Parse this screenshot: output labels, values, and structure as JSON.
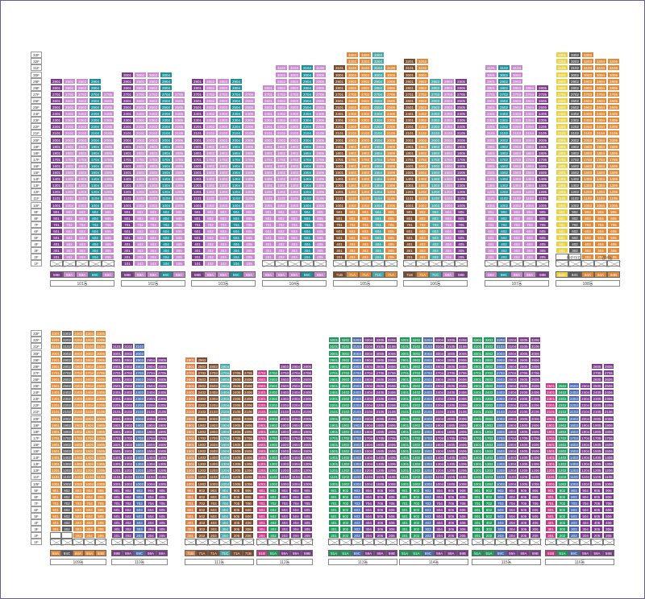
{
  "floor_labels": [
    "33F",
    "32F",
    "31F",
    "30F",
    "29F",
    "28F",
    "27F",
    "26F",
    "25F",
    "24F",
    "23F",
    "22F",
    "21F",
    "20F",
    "19F",
    "18F",
    "17F",
    "16F",
    "15F",
    "14F",
    "13F",
    "12F",
    "11F",
    "10F",
    "9F",
    "8F",
    "7F",
    "6F",
    "5F",
    "4F",
    "3F",
    "2F",
    "1F"
  ],
  "colors": {
    "59A": "#7b3a8c",
    "59B": "#7b3a8c",
    "59C": "#1f8f9a",
    "71A": "#d9824a",
    "71B": "#6b3f2a",
    "71C": "#4aa8a8",
    "84A": "#e08a3a",
    "84B": "#8e8e8e",
    "84C": "#5a4a8a",
    "51A": "#c63a8a",
    "51B": "#1f9a5a",
    "light": "#e8a9d8",
    "yellow": "#e8d24a",
    "brown": "#7b4a2a",
    "olive": "#c8a832",
    "blue": "#4a6ab0"
  },
  "rows": [
    {
      "buildings": [
        {
          "name": "101동",
          "units": 5,
          "top": 29,
          "types": [
            "59B",
            "59A",
            "59A",
            "59C",
            "59A"
          ],
          "colors": [
            "#7b3a8c",
            "#c98ad0",
            "#c98ad0",
            "#1f8f9a",
            "#c98ad0"
          ],
          "tops": [
            29,
            29,
            29,
            29,
            27
          ],
          "blank_bottom": 1
        },
        {
          "name": "102동",
          "units": 5,
          "top": 30,
          "types": [
            "59B",
            "59A",
            "59A",
            "59C",
            "59A"
          ],
          "colors": [
            "#7b3a8c",
            "#c98ad0",
            "#c98ad0",
            "#1f8f9a",
            "#c98ad0"
          ],
          "tops": [
            30,
            30,
            30,
            30,
            27
          ],
          "blank_bottom": 0
        },
        {
          "name": "103동",
          "units": 5,
          "top": 29,
          "types": [
            "59B",
            "59A",
            "59A",
            "59C",
            "59A"
          ],
          "colors": [
            "#7b3a8c",
            "#c98ad0",
            "#c98ad0",
            "#1f8f9a",
            "#c98ad0"
          ],
          "tops": [
            29,
            29,
            29,
            29,
            27
          ],
          "blank_bottom": 0
        },
        {
          "name": "104동",
          "units": 5,
          "top": 31,
          "types": [
            "59A",
            "59A",
            "59A",
            "59C",
            "59A"
          ],
          "colors": [
            "#c98ad0",
            "#c98ad0",
            "#c98ad0",
            "#1f8f9a",
            "#c98ad0"
          ],
          "tops": [
            28,
            31,
            31,
            31,
            31
          ],
          "blank_bottom": 1
        },
        {
          "name": "105동",
          "units": 5,
          "top": 33,
          "types": [
            "71B",
            "71A",
            "71A",
            "71C",
            "71A"
          ],
          "colors": [
            "#7b4a2a",
            "#e08a3a",
            "#e08a3a",
            "#4aa8a8",
            "#e08a3a"
          ],
          "tops": [
            31,
            33,
            33,
            33,
            31
          ],
          "blank_bottom": 1
        },
        {
          "name": "106동",
          "units": 5,
          "top": 32,
          "types": [
            "71B",
            "71A",
            "71C",
            "59A",
            "59B"
          ],
          "colors": [
            "#7b4a2a",
            "#e08a3a",
            "#4aa8a8",
            "#c98ad0",
            "#7b3a8c"
          ],
          "tops": [
            32,
            32,
            29,
            29,
            29
          ],
          "blank_bottom": 1
        },
        {
          "name": "107동",
          "units": 5,
          "top": 31,
          "types": [
            "59A",
            "59C",
            "59A",
            "59A",
            "59B"
          ],
          "colors": [
            "#c98ad0",
            "#1f8f9a",
            "#c98ad0",
            "#c98ad0",
            "#7b3a8c"
          ],
          "tops": [
            31,
            31,
            31,
            28,
            28
          ],
          "blank_bottom": 1
        },
        {
          "name": "108동",
          "units": 5,
          "top": 33,
          "types": [
            "84A",
            "84C",
            "84A",
            "84A",
            "84B"
          ],
          "colors": [
            "#e8d24a",
            "#5a5a5a",
            "#e08a3a",
            "#e08a3a",
            "#e08a3a"
          ],
          "tops": [
            33,
            33,
            33,
            32,
            32
          ],
          "blank_bottom": 2,
          "note1": "어린이집",
          "note2": "경비실"
        }
      ]
    },
    {
      "buildings": [
        {
          "name": "109동",
          "units": 5,
          "top": 33,
          "types": [
            "84A",
            "84C",
            "84A",
            "84A",
            "84B"
          ],
          "colors": [
            "#e08a3a",
            "#5a5a5a",
            "#e08a3a",
            "#e08a3a",
            "#e08a3a"
          ],
          "tops": [
            33,
            33,
            33,
            33,
            33
          ],
          "blank_bottom": 2
        },
        {
          "name": "110동",
          "units": 5,
          "top": 31,
          "types": [
            "59B",
            "59A",
            "59C",
            "59A",
            "59A"
          ],
          "colors": [
            "#7b3a8c",
            "#7b3a8c",
            "#4a6ab0",
            "#7b3a8c",
            "#7b3a8c"
          ],
          "tops": [
            31,
            31,
            31,
            29,
            29
          ],
          "blank_bottom": 1
        },
        {
          "name": "111동",
          "units": 6,
          "top": 29,
          "types": [
            "71B",
            "71A",
            "71A",
            "71C",
            "71A",
            "71B"
          ],
          "colors": [
            "#d9824a",
            "#7b4a2a",
            "#7b4a2a",
            "#4aa8a8",
            "#7b4a2a",
            "#7b4a2a"
          ],
          "tops": [
            29,
            29,
            28,
            28,
            27,
            27
          ],
          "blank_bottom": 1
        },
        {
          "name": "112동",
          "units": 5,
          "top": 28,
          "types": [
            "51B",
            "51A",
            "59A",
            "59A",
            "59B"
          ],
          "colors": [
            "#c63a8a",
            "#1f9a5a",
            "#7b3a8c",
            "#7b3a8c",
            "#7b3a8c"
          ],
          "tops": [
            27,
            27,
            28,
            28,
            28
          ],
          "blank_bottom": 1
        },
        {
          "name": "113동",
          "units": 6,
          "top": 32,
          "types": [
            "51A",
            "51A",
            "59C",
            "59A",
            "59A",
            "59B"
          ],
          "colors": [
            "#1f9a5a",
            "#1f9a5a",
            "#4a6ab0",
            "#7b3a8c",
            "#7b3a8c",
            "#7b3a8c"
          ],
          "tops": [
            32,
            32,
            32,
            32,
            32,
            32
          ],
          "blank_bottom": 1
        },
        {
          "name": "114동",
          "units": 6,
          "top": 32,
          "types": [
            "51A",
            "51A",
            "59C",
            "59A",
            "59A",
            "59B"
          ],
          "colors": [
            "#1f9a5a",
            "#1f9a5a",
            "#4a6ab0",
            "#7b3a8c",
            "#7b3a8c",
            "#7b3a8c"
          ],
          "tops": [
            32,
            32,
            32,
            32,
            32,
            32
          ],
          "blank_bottom": 1
        },
        {
          "name": "115동",
          "units": 6,
          "top": 32,
          "types": [
            "51A",
            "51A",
            "59C",
            "59A",
            "59A",
            "59B"
          ],
          "colors": [
            "#1f9a5a",
            "#1f9a5a",
            "#4a6ab0",
            "#7b3a8c",
            "#7b3a8c",
            "#7b3a8c"
          ],
          "tops": [
            32,
            32,
            32,
            32,
            32,
            32
          ],
          "blank_bottom": 1
        },
        {
          "name": "116동",
          "units": 6,
          "top": 28,
          "types": [
            "51B",
            "51A",
            "59C",
            "59A",
            "59A",
            "59B"
          ],
          "colors": [
            "#c63a8a",
            "#1f9a5a",
            "#4a6ab0",
            "#7b3a8c",
            "#7b3a8c",
            "#7b3a8c"
          ],
          "tops": [
            25,
            25,
            25,
            25,
            28,
            28
          ],
          "blank_bottom": 1
        }
      ]
    }
  ]
}
